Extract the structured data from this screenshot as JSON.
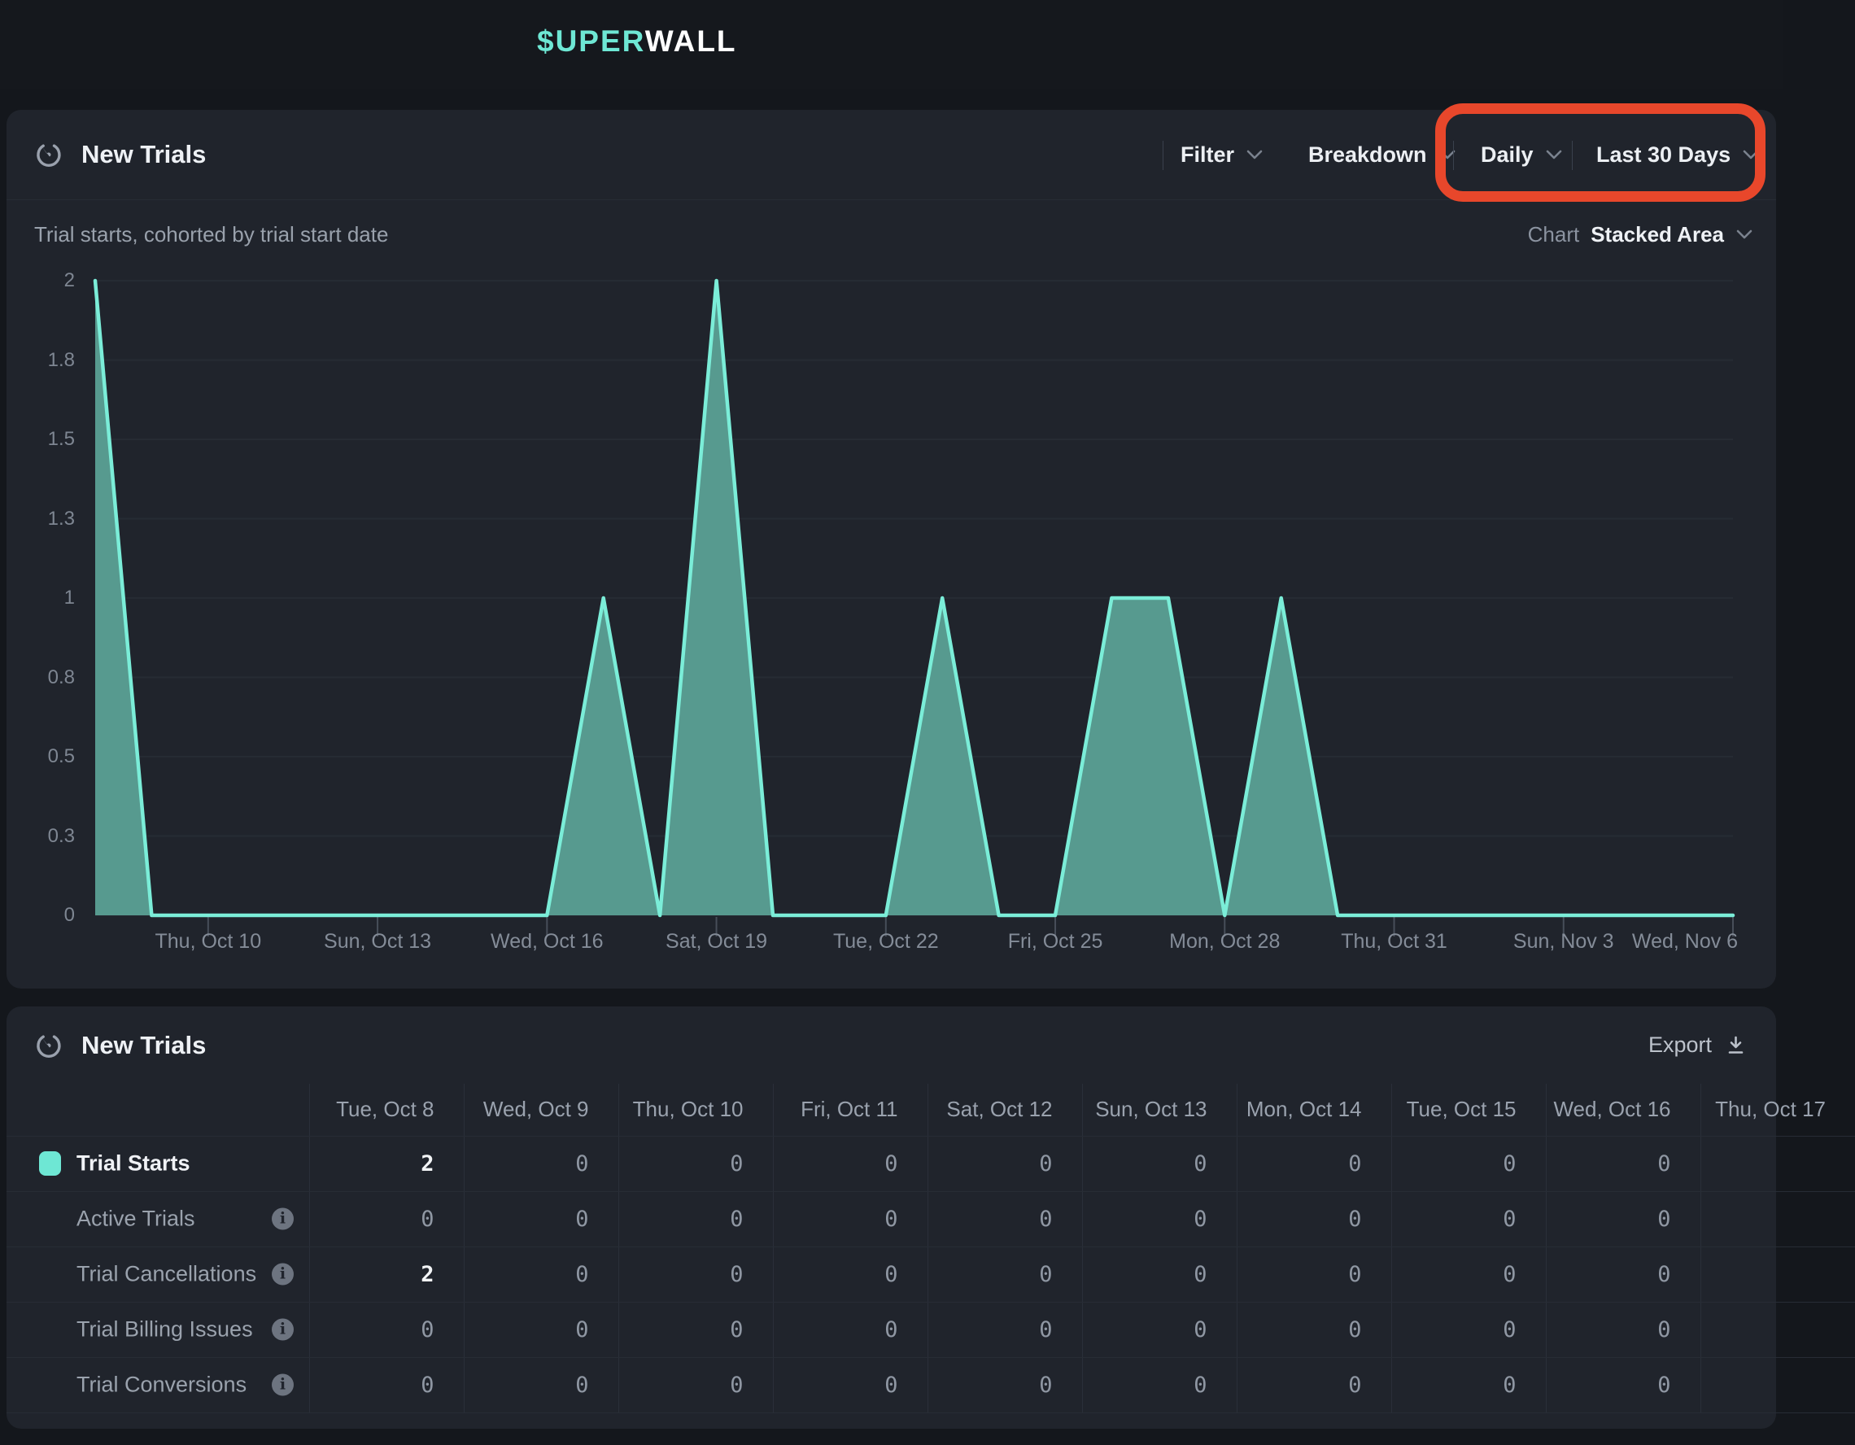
{
  "logo": {
    "prefix": "$UPER",
    "suffix": "WALL"
  },
  "chart_card": {
    "title": "New Trials",
    "subtitle": "Trial starts, cohorted by trial start date",
    "controls": {
      "filter_label": "Filter",
      "breakdown_label": "Breakdown",
      "granularity_label": "Daily",
      "range_label": "Last 30 Days"
    },
    "chart_type_label": "Chart",
    "chart_type_value": "Stacked Area"
  },
  "chart_data": {
    "type": "area",
    "title": "New Trials",
    "x": [
      "Oct 8",
      "Oct 9",
      "Oct 10",
      "Oct 11",
      "Oct 12",
      "Oct 13",
      "Oct 14",
      "Oct 15",
      "Oct 16",
      "Oct 17",
      "Oct 18",
      "Oct 19",
      "Oct 20",
      "Oct 21",
      "Oct 22",
      "Oct 23",
      "Oct 24",
      "Oct 25",
      "Oct 26",
      "Oct 27",
      "Oct 28",
      "Oct 29",
      "Oct 30",
      "Oct 31",
      "Nov 1",
      "Nov 2",
      "Nov 3",
      "Nov 4",
      "Nov 5",
      "Nov 6"
    ],
    "series": [
      {
        "name": "Trial Starts",
        "values": [
          2,
          0,
          0,
          0,
          0,
          0,
          0,
          0,
          0,
          1,
          0,
          2,
          0,
          0,
          0,
          1,
          0,
          0,
          1,
          1,
          0,
          1,
          0,
          0,
          0,
          0,
          0,
          0,
          0,
          0
        ]
      }
    ],
    "ylim": [
      0,
      2
    ],
    "y_tick_labels": [
      "2",
      "1.8",
      "1.5",
      "1.3",
      "1",
      "0.8",
      "0.5",
      "0.3",
      "0"
    ],
    "x_tick_labels": [
      "Thu, Oct 10",
      "Sun, Oct 13",
      "Wed, Oct 16",
      "Sat, Oct 19",
      "Tue, Oct 22",
      "Fri, Oct 25",
      "Mon, Oct 28",
      "Thu, Oct 31",
      "Sun, Nov 3",
      "Wed, Nov 6"
    ],
    "grid": true,
    "legend_position": "none",
    "line_color": "#7BEDD8",
    "fill_color": "#579A8F",
    "legend_color": "#6EE7D4"
  },
  "table_card": {
    "title": "New Trials",
    "export_label": "Export",
    "columns": [
      "Tue, Oct 8",
      "Wed, Oct 9",
      "Thu, Oct 10",
      "Fri, Oct 11",
      "Sat, Oct 12",
      "Sun, Oct 13",
      "Mon, Oct 14",
      "Tue, Oct 15",
      "Wed, Oct 16",
      "Thu, Oct 17"
    ],
    "rows": [
      {
        "label": "Trial Starts",
        "emphasis": true,
        "swatch": true,
        "info": false,
        "values": [
          "2",
          "0",
          "0",
          "0",
          "0",
          "0",
          "0",
          "0",
          "0",
          ""
        ]
      },
      {
        "label": "Active Trials",
        "emphasis": false,
        "swatch": false,
        "info": true,
        "values": [
          "0",
          "0",
          "0",
          "0",
          "0",
          "0",
          "0",
          "0",
          "0",
          ""
        ]
      },
      {
        "label": "Trial Cancellations",
        "emphasis": false,
        "swatch": false,
        "info": true,
        "values": [
          "2",
          "0",
          "0",
          "0",
          "0",
          "0",
          "0",
          "0",
          "0",
          ""
        ]
      },
      {
        "label": "Trial Billing Issues",
        "emphasis": false,
        "swatch": false,
        "info": true,
        "values": [
          "0",
          "0",
          "0",
          "0",
          "0",
          "0",
          "0",
          "0",
          "0",
          ""
        ]
      },
      {
        "label": "Trial Conversions",
        "emphasis": false,
        "swatch": false,
        "info": true,
        "values": [
          "0",
          "0",
          "0",
          "0",
          "0",
          "0",
          "0",
          "0",
          "0",
          ""
        ]
      }
    ]
  },
  "annotation": {
    "color": "#E8472B"
  }
}
